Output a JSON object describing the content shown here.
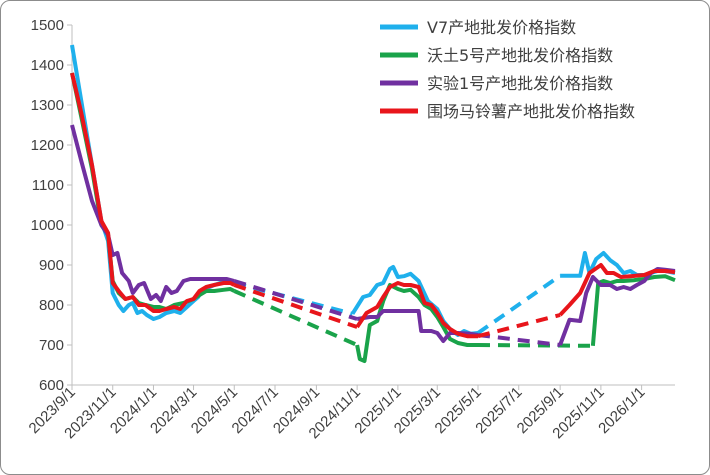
{
  "chart_data": {
    "type": "line",
    "title": "",
    "xlabel": "",
    "ylabel": "",
    "ylim": [
      600,
      1500
    ],
    "yticks": [
      600,
      700,
      800,
      900,
      1000,
      1100,
      1200,
      1300,
      1400,
      1500
    ],
    "xlim": [
      "2023-09-01",
      "2026-02-20"
    ],
    "xtick_labels": [
      "2023/9/1",
      "2023/11/1",
      "2024/1/1",
      "2024/3/1",
      "2024/5/1",
      "2024/7/1",
      "2024/9/1",
      "2024/11/1",
      "2025/1/1",
      "2025/3/1",
      "2025/5/1",
      "2025/7/1",
      "2025/9/1",
      "2025/11/1",
      "2026/1/1"
    ],
    "xtick_dates": [
      "2023-09-01",
      "2023-11-01",
      "2024-01-01",
      "2024-03-01",
      "2024-05-01",
      "2024-07-01",
      "2024-09-01",
      "2024-11-01",
      "2025-01-01",
      "2025-03-01",
      "2025-05-01",
      "2025-07-01",
      "2025-09-01",
      "2025-11-01",
      "2026-01-01"
    ],
    "legend_position": "top-right",
    "series": [
      {
        "name": "V7产地批发价格指数",
        "color": "#1fb0ec",
        "points": [
          [
            "2023-09-01",
            1450
          ],
          [
            "2023-09-15",
            1310
          ],
          [
            "2023-10-01",
            1150
          ],
          [
            "2023-10-15",
            1010
          ],
          [
            "2023-10-25",
            960
          ],
          [
            "2023-11-01",
            830
          ],
          [
            "2023-11-10",
            800
          ],
          [
            "2023-11-17",
            785
          ],
          [
            "2023-11-25",
            800
          ],
          [
            "2023-12-01",
            805
          ],
          [
            "2023-12-08",
            780
          ],
          [
            "2023-12-15",
            785
          ],
          [
            "2023-12-22",
            775
          ],
          [
            "2024-01-01",
            765
          ],
          [
            "2024-01-10",
            770
          ],
          [
            "2024-01-20",
            780
          ],
          [
            "2024-02-01",
            785
          ],
          [
            "2024-02-10",
            780
          ],
          [
            "2024-02-20",
            795
          ],
          [
            "2024-03-01",
            810
          ],
          [
            "2024-03-08",
            820
          ],
          [
            "2024-03-15",
            840
          ],
          [
            "2024-03-25",
            845
          ],
          [
            "2024-04-01",
            850
          ],
          [
            "2024-04-10",
            855
          ],
          [
            "2024-04-20",
            858
          ],
          [
            "2024-05-01",
            855
          ],
          [
            "2024-10-25",
            778
          ],
          [
            "2024-11-10",
            820
          ],
          [
            "2024-11-20",
            825
          ],
          [
            "2024-12-01",
            850
          ],
          [
            "2024-12-10",
            855
          ],
          [
            "2024-12-20",
            890
          ],
          [
            "2024-12-25",
            895
          ],
          [
            "2025-01-01",
            870
          ],
          [
            "2025-01-10",
            872
          ],
          [
            "2025-01-20",
            878
          ],
          [
            "2025-02-01",
            860
          ],
          [
            "2025-02-15",
            810
          ],
          [
            "2025-03-01",
            790
          ],
          [
            "2025-03-10",
            760
          ],
          [
            "2025-03-20",
            740
          ],
          [
            "2025-04-01",
            725
          ],
          [
            "2025-04-10",
            735
          ],
          [
            "2025-04-20",
            728
          ],
          [
            "2025-05-01",
            730
          ],
          [
            "2025-09-01",
            873
          ],
          [
            "2025-10-01",
            873
          ],
          [
            "2025-10-08",
            930
          ],
          [
            "2025-10-15",
            880
          ],
          [
            "2025-10-25",
            915
          ],
          [
            "2025-11-05",
            930
          ],
          [
            "2025-11-15",
            912
          ],
          [
            "2025-11-25",
            900
          ],
          [
            "2025-12-05",
            880
          ],
          [
            "2025-12-15",
            885
          ],
          [
            "2025-12-25",
            875
          ],
          [
            "2026-01-05",
            875
          ],
          [
            "2026-01-15",
            880
          ],
          [
            "2026-01-25",
            885
          ],
          [
            "2026-02-05",
            885
          ],
          [
            "2026-02-20",
            880
          ]
        ],
        "dashed_ranges": [
          [
            "2024-05-01",
            "2024-10-25"
          ],
          [
            "2025-05-01",
            "2025-09-01"
          ]
        ]
      },
      {
        "name": "沃土5号产地批发价格指数",
        "color": "#1aa34a",
        "points": [
          [
            "2023-09-01",
            1380
          ],
          [
            "2023-09-15",
            1270
          ],
          [
            "2023-10-01",
            1140
          ],
          [
            "2023-10-15",
            1000
          ],
          [
            "2023-10-25",
            975
          ],
          [
            "2023-11-01",
            860
          ],
          [
            "2023-11-10",
            830
          ],
          [
            "2023-11-20",
            815
          ],
          [
            "2023-12-01",
            820
          ],
          [
            "2023-12-10",
            805
          ],
          [
            "2023-12-20",
            800
          ],
          [
            "2024-01-01",
            795
          ],
          [
            "2024-01-10",
            795
          ],
          [
            "2024-01-20",
            790
          ],
          [
            "2024-02-01",
            800
          ],
          [
            "2024-02-15",
            805
          ],
          [
            "2024-03-01",
            815
          ],
          [
            "2024-03-10",
            825
          ],
          [
            "2024-03-20",
            835
          ],
          [
            "2024-04-01",
            835
          ],
          [
            "2024-04-15",
            838
          ],
          [
            "2024-04-25",
            840
          ],
          [
            "2024-05-01",
            835
          ],
          [
            "2024-11-01",
            700
          ],
          [
            "2024-11-05",
            665
          ],
          [
            "2024-11-12",
            660
          ],
          [
            "2024-11-20",
            750
          ],
          [
            "2024-12-01",
            760
          ],
          [
            "2024-12-10",
            810
          ],
          [
            "2024-12-20",
            850
          ],
          [
            "2025-01-01",
            840
          ],
          [
            "2025-01-10",
            835
          ],
          [
            "2025-01-20",
            838
          ],
          [
            "2025-02-01",
            820
          ],
          [
            "2025-02-10",
            800
          ],
          [
            "2025-02-20",
            790
          ],
          [
            "2025-03-01",
            770
          ],
          [
            "2025-03-10",
            745
          ],
          [
            "2025-03-20",
            715
          ],
          [
            "2025-04-01",
            705
          ],
          [
            "2025-04-15",
            700
          ],
          [
            "2025-05-01",
            700
          ],
          [
            "2025-10-20",
            698
          ],
          [
            "2025-10-28",
            855
          ],
          [
            "2025-11-05",
            860
          ],
          [
            "2025-11-15",
            855
          ],
          [
            "2025-11-25",
            860
          ],
          [
            "2025-12-05",
            860
          ],
          [
            "2025-12-20",
            862
          ],
          [
            "2026-01-05",
            865
          ],
          [
            "2026-01-20",
            870
          ],
          [
            "2026-02-05",
            872
          ],
          [
            "2026-02-20",
            862
          ]
        ],
        "dashed_ranges": [
          [
            "2024-05-01",
            "2024-11-01"
          ],
          [
            "2025-05-01",
            "2025-10-20"
          ]
        ]
      },
      {
        "name": "实验1号产地批发价格指数",
        "color": "#7030a0",
        "points": [
          [
            "2023-09-01",
            1250
          ],
          [
            "2023-09-15",
            1160
          ],
          [
            "2023-10-01",
            1060
          ],
          [
            "2023-10-15",
            1000
          ],
          [
            "2023-10-25",
            975
          ],
          [
            "2023-11-01",
            925
          ],
          [
            "2023-11-08",
            930
          ],
          [
            "2023-11-15",
            880
          ],
          [
            "2023-11-25",
            860
          ],
          [
            "2023-12-01",
            830
          ],
          [
            "2023-12-10",
            850
          ],
          [
            "2023-12-18",
            855
          ],
          [
            "2023-12-28",
            815
          ],
          [
            "2024-01-05",
            825
          ],
          [
            "2024-01-12",
            810
          ],
          [
            "2024-01-20",
            845
          ],
          [
            "2024-01-28",
            830
          ],
          [
            "2024-02-05",
            835
          ],
          [
            "2024-02-15",
            860
          ],
          [
            "2024-02-25",
            865
          ],
          [
            "2024-03-10",
            865
          ],
          [
            "2024-04-01",
            865
          ],
          [
            "2024-04-20",
            865
          ],
          [
            "2024-05-01",
            860
          ],
          [
            "2024-11-01",
            765
          ],
          [
            "2024-11-20",
            770
          ],
          [
            "2024-12-01",
            770
          ],
          [
            "2024-12-10",
            785
          ],
          [
            "2025-01-01",
            785
          ],
          [
            "2025-01-15",
            785
          ],
          [
            "2025-02-01",
            785
          ],
          [
            "2025-02-05",
            735
          ],
          [
            "2025-02-20",
            735
          ],
          [
            "2025-03-01",
            730
          ],
          [
            "2025-03-10",
            710
          ],
          [
            "2025-03-20",
            730
          ],
          [
            "2025-04-01",
            730
          ],
          [
            "2025-04-20",
            728
          ],
          [
            "2025-05-01",
            725
          ],
          [
            "2025-09-01",
            700
          ],
          [
            "2025-09-15",
            763
          ],
          [
            "2025-10-01",
            760
          ],
          [
            "2025-10-10",
            830
          ],
          [
            "2025-10-20",
            870
          ],
          [
            "2025-11-01",
            850
          ],
          [
            "2025-11-15",
            850
          ],
          [
            "2025-11-25",
            840
          ],
          [
            "2025-12-05",
            845
          ],
          [
            "2025-12-15",
            840
          ],
          [
            "2025-12-25",
            850
          ],
          [
            "2026-01-05",
            860
          ],
          [
            "2026-01-15",
            880
          ],
          [
            "2026-01-25",
            890
          ],
          [
            "2026-02-05",
            888
          ],
          [
            "2026-02-20",
            885
          ]
        ],
        "dashed_ranges": [
          [
            "2024-05-01",
            "2024-11-01"
          ],
          [
            "2025-05-01",
            "2025-09-01"
          ]
        ]
      },
      {
        "name": "围场马铃薯产地批发价格指数",
        "color": "#e8151b",
        "points": [
          [
            "2023-09-01",
            1380
          ],
          [
            "2023-09-15",
            1280
          ],
          [
            "2023-10-01",
            1150
          ],
          [
            "2023-10-15",
            1010
          ],
          [
            "2023-10-25",
            980
          ],
          [
            "2023-11-01",
            855
          ],
          [
            "2023-11-10",
            835
          ],
          [
            "2023-11-20",
            815
          ],
          [
            "2023-12-01",
            820
          ],
          [
            "2023-12-10",
            800
          ],
          [
            "2023-12-20",
            800
          ],
          [
            "2024-01-01",
            785
          ],
          [
            "2024-01-10",
            785
          ],
          [
            "2024-01-20",
            790
          ],
          [
            "2024-02-01",
            795
          ],
          [
            "2024-02-10",
            790
          ],
          [
            "2024-02-20",
            810
          ],
          [
            "2024-03-01",
            815
          ],
          [
            "2024-03-10",
            835
          ],
          [
            "2024-03-20",
            845
          ],
          [
            "2024-04-01",
            850
          ],
          [
            "2024-04-15",
            855
          ],
          [
            "2024-04-25",
            855
          ],
          [
            "2024-05-01",
            850
          ],
          [
            "2024-11-01",
            745
          ],
          [
            "2024-11-15",
            780
          ],
          [
            "2024-12-01",
            795
          ],
          [
            "2024-12-10",
            820
          ],
          [
            "2024-12-20",
            845
          ],
          [
            "2025-01-01",
            855
          ],
          [
            "2025-01-10",
            850
          ],
          [
            "2025-01-20",
            850
          ],
          [
            "2025-02-01",
            845
          ],
          [
            "2025-02-10",
            805
          ],
          [
            "2025-02-20",
            800
          ],
          [
            "2025-03-01",
            780
          ],
          [
            "2025-03-10",
            755
          ],
          [
            "2025-03-20",
            740
          ],
          [
            "2025-04-01",
            728
          ],
          [
            "2025-04-15",
            722
          ],
          [
            "2025-05-01",
            722
          ],
          [
            "2025-09-01",
            775
          ],
          [
            "2025-09-15",
            800
          ],
          [
            "2025-10-01",
            830
          ],
          [
            "2025-10-15",
            880
          ],
          [
            "2025-11-01",
            900
          ],
          [
            "2025-11-10",
            880
          ],
          [
            "2025-11-20",
            880
          ],
          [
            "2025-12-01",
            870
          ],
          [
            "2025-12-15",
            872
          ],
          [
            "2026-01-05",
            875
          ],
          [
            "2026-01-20",
            885
          ],
          [
            "2026-02-05",
            885
          ],
          [
            "2026-02-20",
            882
          ]
        ],
        "dashed_ranges": [
          [
            "2024-05-01",
            "2024-11-01"
          ],
          [
            "2025-05-01",
            "2025-09-01"
          ]
        ]
      }
    ]
  }
}
